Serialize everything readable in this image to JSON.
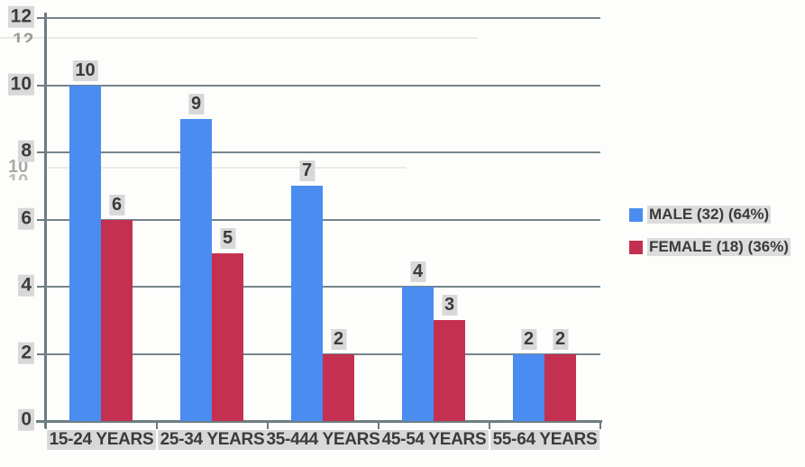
{
  "chart_data": {
    "type": "bar",
    "title": "",
    "xlabel": "",
    "ylabel": "",
    "categories": [
      "15-24 YEARS",
      "25-34 YEARS",
      "35-444 YEARS",
      "45-54 YEARS",
      "55-64 YEARS"
    ],
    "series": [
      {
        "name": "MALE (32) (64%)",
        "color": "#4a8cf0",
        "values": [
          10,
          9,
          7,
          4,
          2
        ]
      },
      {
        "name": "FEMALE (18) (36%)",
        "color": "#c43050",
        "values": [
          6,
          5,
          2,
          3,
          2
        ]
      }
    ],
    "ylim": [
      0,
      12
    ],
    "yticks": [
      0,
      2,
      4,
      6,
      8,
      10,
      12
    ],
    "grid": true,
    "legend_position": "right",
    "data_labels": true
  },
  "colors": {
    "male_bar": "#4a8cf0",
    "female_bar": "#c43050",
    "gridline": "#75858c",
    "axis": "#6d7d82",
    "text": "#3b3b3b",
    "label_background": "#d8d8d8",
    "page_background": "#fdfdfb"
  },
  "artifacts": {
    "ghost_12": "12",
    "ghost_10_axis": "10",
    "ghost_10_axis2": "10",
    "ghost_10_bar": "10",
    "ghost_9_bar": "9"
  }
}
